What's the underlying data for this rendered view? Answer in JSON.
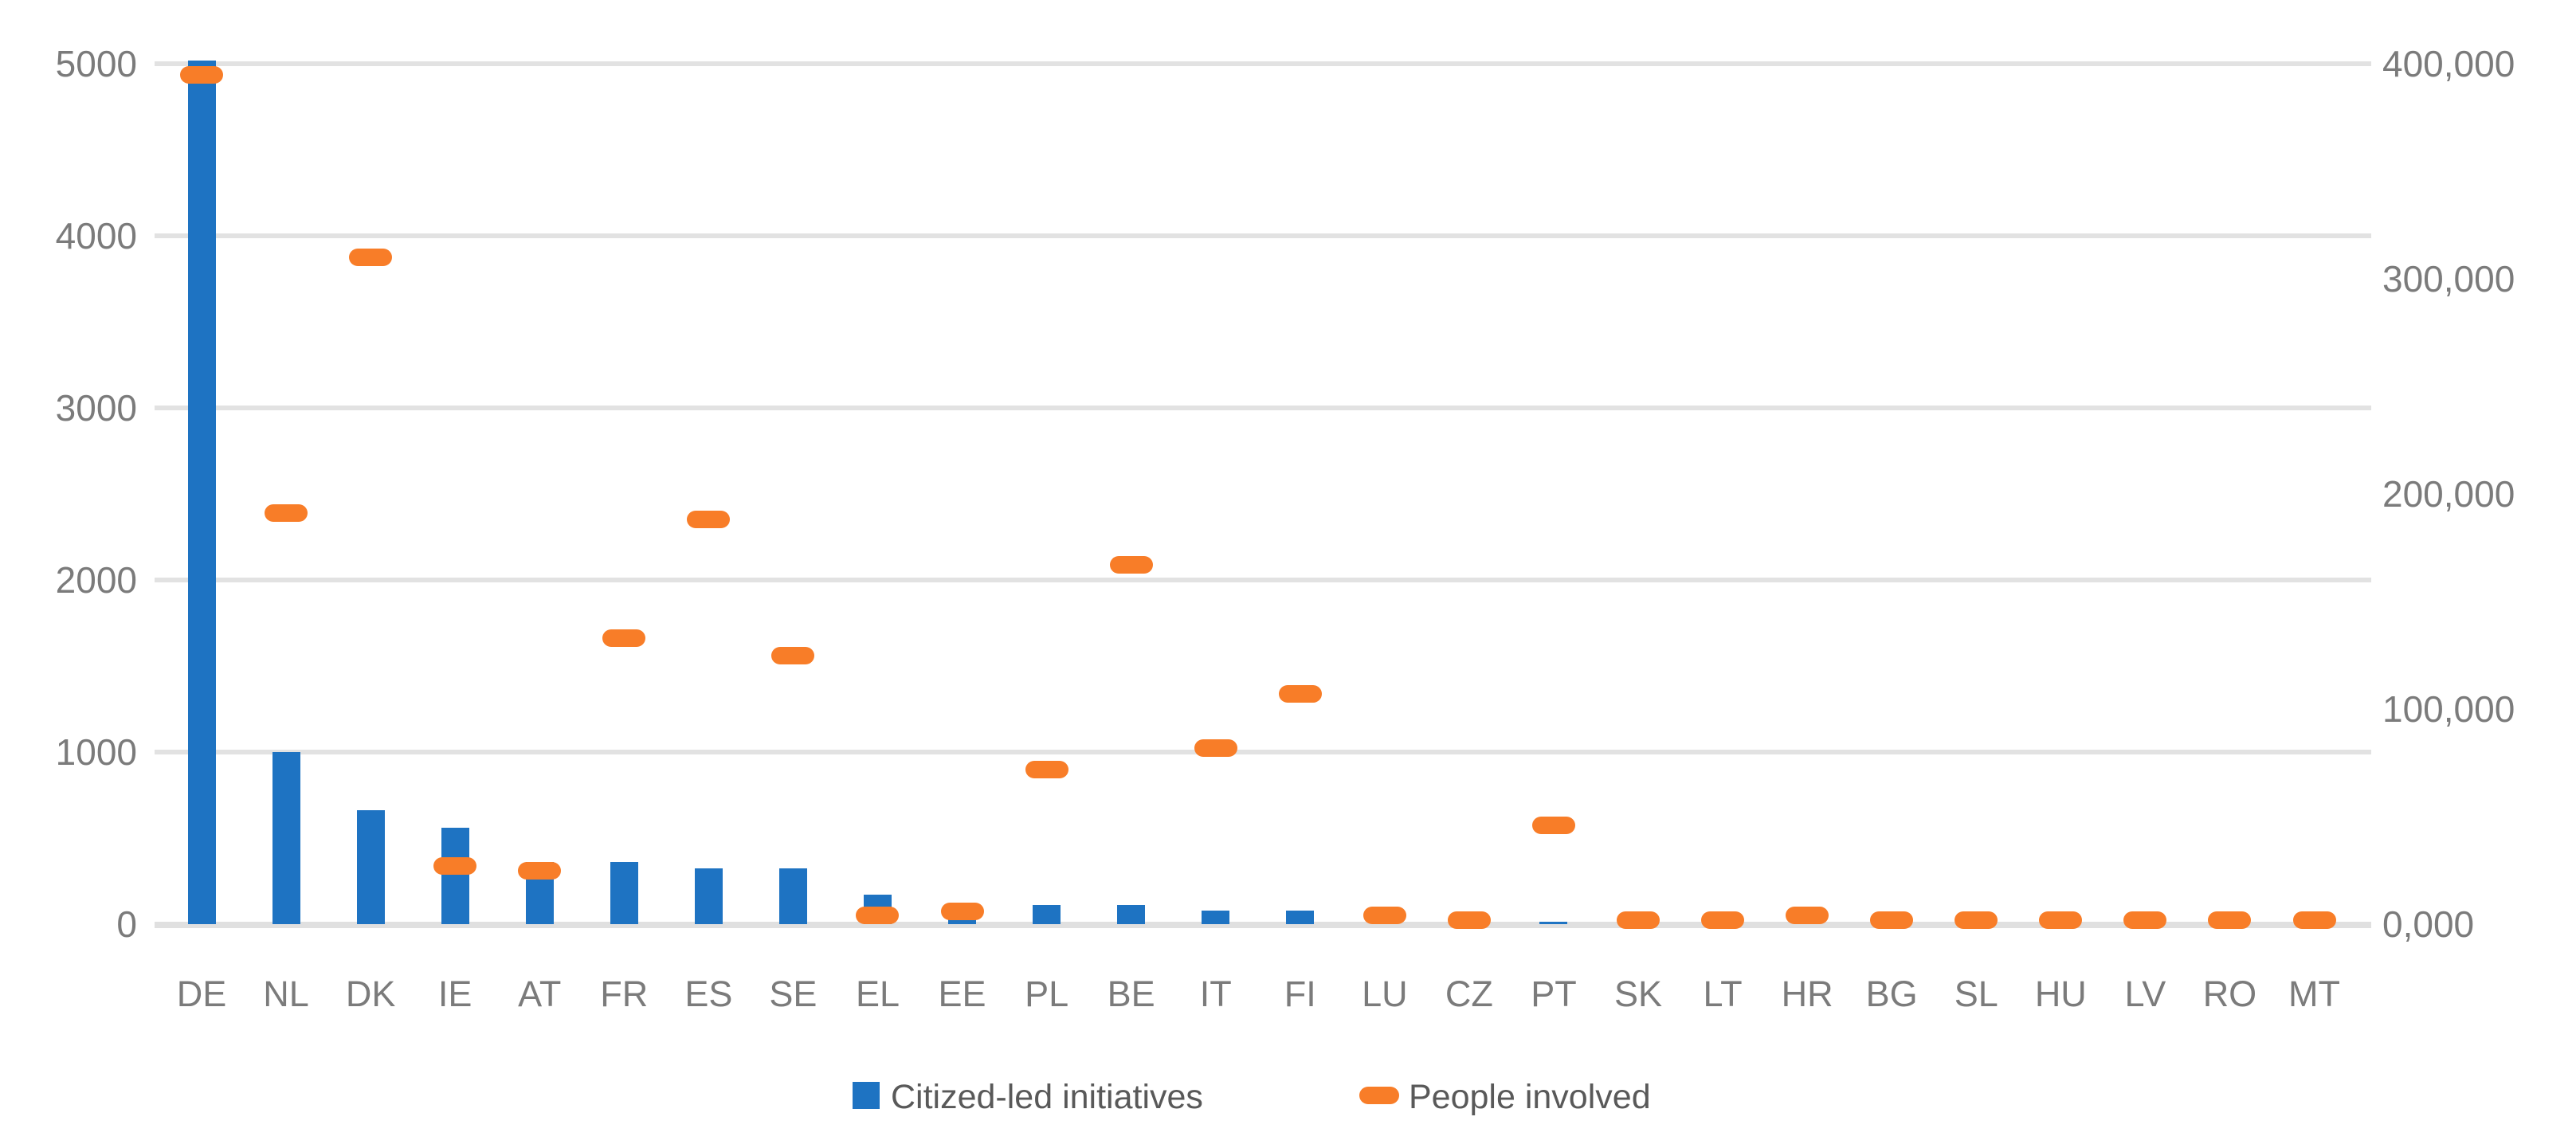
{
  "chart_data": {
    "type": "bar",
    "subtype": "combo-bar-with-dash-markers-dual-axis",
    "title": "",
    "categories": [
      "DE",
      "NL",
      "DK",
      "IE",
      "AT",
      "FR",
      "ES",
      "SE",
      "EL",
      "EE",
      "PL",
      "BE",
      "IT",
      "FI",
      "LU",
      "CZ",
      "PT",
      "SK",
      "LT",
      "HR",
      "BG",
      "SL",
      "HU",
      "LV",
      "RO",
      "MT"
    ],
    "series": [
      {
        "name": "Citized-led initiatives",
        "marker": "bar",
        "axis": "left",
        "color": "#1e73c2",
        "values": [
          5020,
          1000,
          660,
          560,
          360,
          360,
          325,
          325,
          170,
          60,
          110,
          110,
          80,
          80,
          0,
          0,
          15,
          0,
          0,
          0,
          0,
          0,
          0,
          0,
          0,
          0
        ]
      },
      {
        "name": "People involved",
        "marker": "dash",
        "axis": "right",
        "color": "#f87d28",
        "values": [
          395000,
          191000,
          310000,
          27000,
          25000,
          133000,
          188000,
          125000,
          4000,
          6000,
          72000,
          167000,
          82000,
          107000,
          4000,
          2000,
          46000,
          2000,
          2000,
          4000,
          2000,
          2000,
          2000,
          2000,
          2000,
          2000
        ]
      }
    ],
    "left_axis": {
      "min": 0,
      "max": 5000,
      "tick_labels": [
        "5000",
        "4000",
        "3000",
        "2000",
        "1000",
        "0"
      ]
    },
    "right_axis": {
      "min": 0,
      "max": 400000,
      "tick_labels": [
        "400,000",
        "300,000",
        "200,000",
        "100,000",
        "0,000"
      ]
    },
    "grid": true,
    "legend_position": "bottom"
  },
  "legend": {
    "items": [
      {
        "label": "Citized-led initiatives",
        "swatch": "blue-square"
      },
      {
        "label": "People involved",
        "swatch": "orange-dash"
      }
    ]
  },
  "colors": {
    "bar_blue": "#1e73c2",
    "dash_orange": "#f87d28",
    "gridline": "#e2e2e2",
    "tick_text": "#7b7b7b",
    "legend_text": "#595959"
  }
}
